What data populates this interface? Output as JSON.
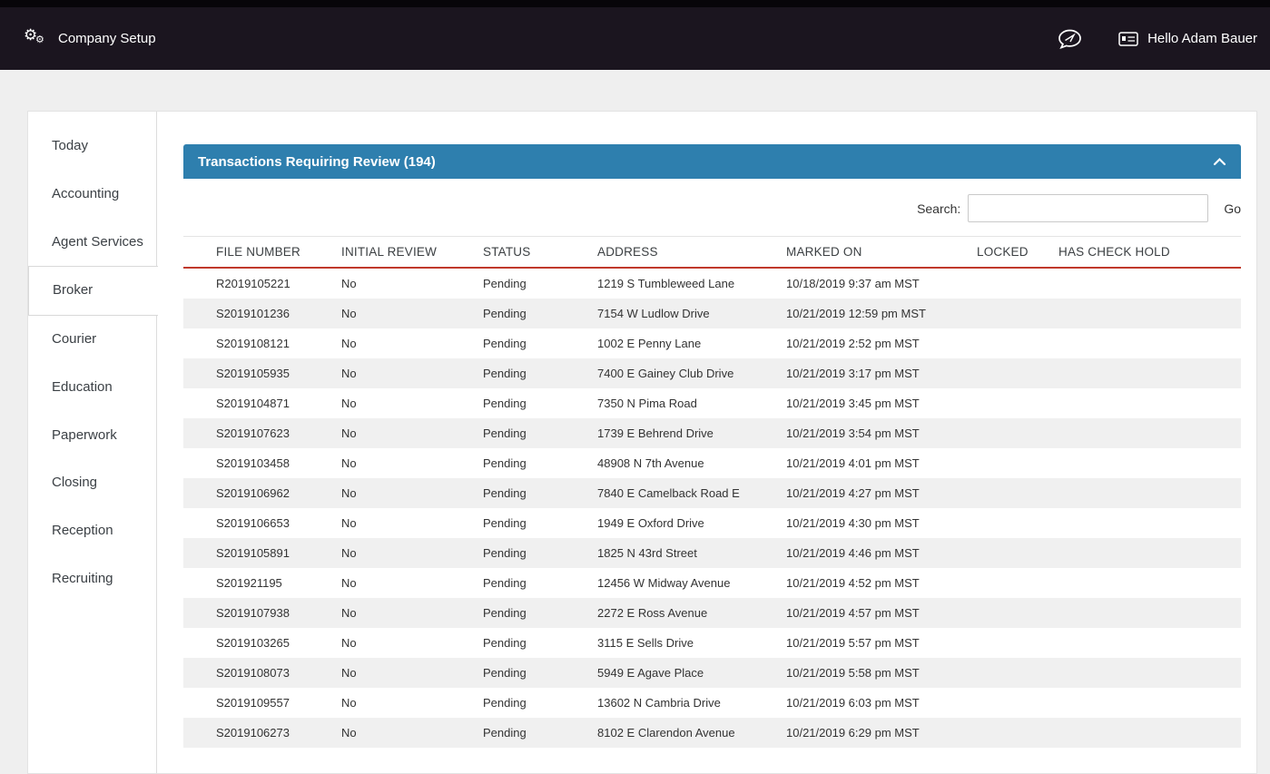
{
  "topbar": {
    "title": "Company Setup",
    "greeting": "Hello Adam Bauer"
  },
  "icons": {
    "company_setup": "cogs-icon",
    "messages": "chat-bubble-icon",
    "user": "id-card-icon",
    "panel_collapse": "chevron-up-icon"
  },
  "colors": {
    "topbar_bg": "#1b151f",
    "panel_header_bg": "#2e7fae",
    "header_underline": "#c0392b",
    "row_stripe": "#f0f0f0"
  },
  "sidebar": {
    "items": [
      {
        "label": "Today",
        "active": false
      },
      {
        "label": "Accounting",
        "active": false
      },
      {
        "label": "Agent Services",
        "active": false
      },
      {
        "label": "Broker",
        "active": true
      },
      {
        "label": "Courier",
        "active": false
      },
      {
        "label": "Education",
        "active": false
      },
      {
        "label": "Paperwork",
        "active": false
      },
      {
        "label": "Closing",
        "active": false
      },
      {
        "label": "Reception",
        "active": false
      },
      {
        "label": "Recruiting",
        "active": false
      }
    ]
  },
  "panel": {
    "title": "Transactions Requiring Review (194)"
  },
  "search": {
    "label": "Search:",
    "value": "",
    "go_label": "Go"
  },
  "table": {
    "columns": [
      "FILE NUMBER",
      "INITIAL REVIEW",
      "STATUS",
      "ADDRESS",
      "MARKED ON",
      "LOCKED",
      "HAS CHECK HOLD"
    ],
    "rows": [
      [
        "R2019105221",
        "No",
        "Pending",
        "1219 S Tumbleweed Lane",
        "10/18/2019 9:37 am MST",
        "",
        ""
      ],
      [
        "S2019101236",
        "No",
        "Pending",
        "7154 W Ludlow Drive",
        "10/21/2019 12:59 pm MST",
        "",
        ""
      ],
      [
        "S2019108121",
        "No",
        "Pending",
        "1002 E Penny Lane",
        "10/21/2019 2:52 pm MST",
        "",
        ""
      ],
      [
        "S2019105935",
        "No",
        "Pending",
        "7400 E Gainey Club Drive",
        "10/21/2019 3:17 pm MST",
        "",
        ""
      ],
      [
        "S2019104871",
        "No",
        "Pending",
        "7350 N Pima Road",
        "10/21/2019 3:45 pm MST",
        "",
        ""
      ],
      [
        "S2019107623",
        "No",
        "Pending",
        "1739 E Behrend Drive",
        "10/21/2019 3:54 pm MST",
        "",
        ""
      ],
      [
        "S2019103458",
        "No",
        "Pending",
        "48908 N 7th Avenue",
        "10/21/2019 4:01 pm MST",
        "",
        ""
      ],
      [
        "S2019106962",
        "No",
        "Pending",
        "7840 E Camelback Road E",
        "10/21/2019 4:27 pm MST",
        "",
        ""
      ],
      [
        "S2019106653",
        "No",
        "Pending",
        "1949 E Oxford Drive",
        "10/21/2019 4:30 pm MST",
        "",
        ""
      ],
      [
        "S2019105891",
        "No",
        "Pending",
        "1825 N 43rd Street",
        "10/21/2019 4:46 pm MST",
        "",
        ""
      ],
      [
        "S201921195",
        "No",
        "Pending",
        "12456 W Midway Avenue",
        "10/21/2019 4:52 pm MST",
        "",
        ""
      ],
      [
        "S2019107938",
        "No",
        "Pending",
        "2272 E Ross Avenue",
        "10/21/2019 4:57 pm MST",
        "",
        ""
      ],
      [
        "S2019103265",
        "No",
        "Pending",
        "3115 E Sells Drive",
        "10/21/2019 5:57 pm MST",
        "",
        ""
      ],
      [
        "S2019108073",
        "No",
        "Pending",
        "5949 E Agave Place",
        "10/21/2019 5:58 pm MST",
        "",
        ""
      ],
      [
        "S2019109557",
        "No",
        "Pending",
        "13602 N Cambria Drive",
        "10/21/2019 6:03 pm MST",
        "",
        ""
      ],
      [
        "S2019106273",
        "No",
        "Pending",
        "8102 E Clarendon Avenue",
        "10/21/2019 6:29 pm MST",
        "",
        ""
      ]
    ]
  }
}
